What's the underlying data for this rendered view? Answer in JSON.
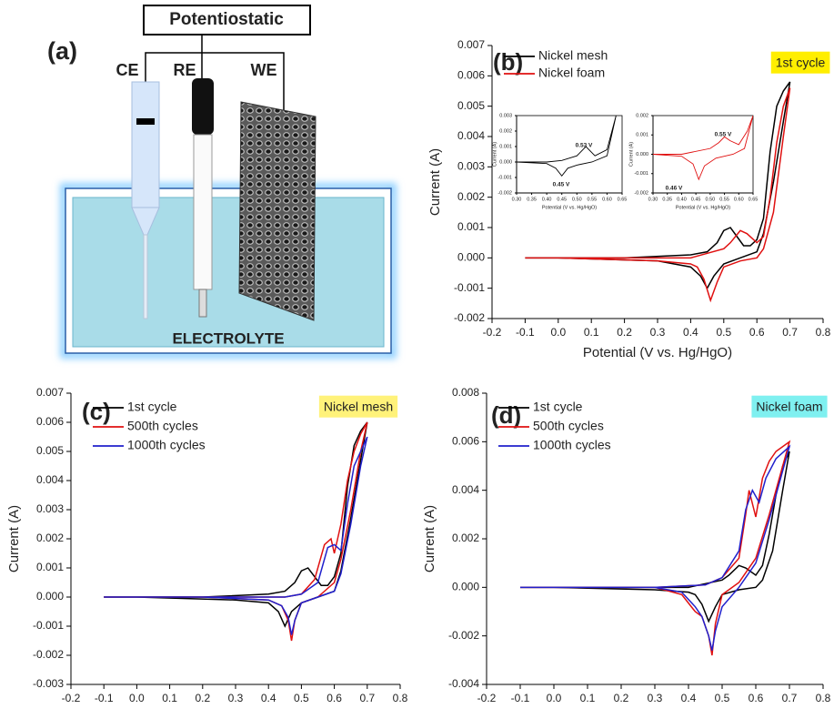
{
  "diagram": {
    "panel_label": "(a)",
    "title": "Potentiostatic",
    "electrodes": [
      "CE",
      "RE",
      "WE"
    ],
    "electrolyte": "ELECTROLYTE"
  },
  "chart_data": [
    {
      "type": "line",
      "panel_label": "(b)",
      "xlabel": "Potential (V vs. Hg/HgO)",
      "ylabel": "Current (A)",
      "badge": "1st cycle",
      "badge_color": "#ffee00",
      "xlim": [
        -0.2,
        0.8
      ],
      "ylim": [
        -0.002,
        0.007
      ],
      "xticks": [
        -0.2,
        -0.1,
        {
          "value": 0,
          "label": "0.0"
        },
        0.1,
        0.2,
        0.3,
        0.4,
        0.5,
        0.6,
        0.7,
        0.8
      ],
      "yticks": [
        -0.002,
        -0.001,
        {
          "value": 0,
          "label": "0.000"
        },
        0.001,
        0.002,
        0.003,
        0.004,
        0.005,
        0.006,
        0.007
      ],
      "series": [
        {
          "name": "Nickel mesh",
          "color": "#000000",
          "x": [
            -0.1,
            0.2,
            0.4,
            0.45,
            0.48,
            0.5,
            0.52,
            0.54,
            0.56,
            0.58,
            0.6,
            0.62,
            0.64,
            0.66,
            0.68,
            0.7,
            0.68,
            0.65,
            0.62,
            0.6,
            0.55,
            0.5,
            0.47,
            0.45,
            0.43,
            0.4,
            0.3,
            0,
            -0.1
          ],
          "values": [
            0,
            0,
            0.0001,
            0.0002,
            0.0005,
            0.0009,
            0.001,
            0.0007,
            0.0004,
            0.0004,
            0.0006,
            0.0013,
            0.0035,
            0.005,
            0.0055,
            0.0058,
            0.0045,
            0.0025,
            0.0008,
            0.0002,
            0,
            -0.0002,
            -0.0006,
            -0.001,
            -0.0006,
            -0.0003,
            -0.0001,
            0,
            0
          ]
        },
        {
          "name": "Nickel foam",
          "color": "#e01010",
          "x": [
            -0.1,
            0.2,
            0.4,
            0.5,
            0.52,
            0.55,
            0.57,
            0.6,
            0.62,
            0.64,
            0.66,
            0.68,
            0.7,
            0.68,
            0.65,
            0.62,
            0.6,
            0.55,
            0.5,
            0.48,
            0.46,
            0.44,
            0.42,
            0.4,
            0.3,
            0,
            -0.1
          ],
          "values": [
            0,
            0,
            0,
            0.0003,
            0.0005,
            0.0009,
            0.0008,
            0.0005,
            0.0007,
            0.002,
            0.0038,
            0.005,
            0.0056,
            0.004,
            0.0015,
            0.0003,
            0,
            -0.0001,
            -0.0003,
            -0.0008,
            -0.0014,
            -0.0007,
            -0.0003,
            -0.0002,
            -0.0001,
            0,
            0
          ]
        }
      ]
    },
    {
      "type": "line",
      "xlabel": "Potential (V vs. Hg/HgO)",
      "ylabel": "Current (A)",
      "annotations": [
        "0.53 V",
        "0.45 V"
      ],
      "xlim": [
        0.3,
        0.65
      ],
      "ylim": [
        -0.002,
        0.003
      ],
      "xticks": [
        {
          "value": 0.3,
          "label": "0.30"
        },
        0.35,
        {
          "value": 0.4,
          "label": "0.40"
        },
        0.45,
        {
          "value": 0.5,
          "label": "0.50"
        },
        0.55,
        {
          "value": 0.6,
          "label": "0.60"
        },
        0.65
      ],
      "yticks": [
        -0.002,
        -0.001,
        {
          "value": 0,
          "label": "0.000"
        },
        0.001,
        0.002,
        0.003
      ],
      "series": [
        {
          "color": "#000000",
          "x": [
            0.3,
            0.4,
            0.45,
            0.5,
            0.53,
            0.56,
            0.6,
            0.63,
            0.6,
            0.55,
            0.5,
            0.47,
            0.45,
            0.43,
            0.4,
            0.3
          ],
          "values": [
            0,
            0,
            0.0001,
            0.0004,
            0.001,
            0.0004,
            0.0008,
            0.003,
            0.0004,
            0,
            -0.0002,
            -0.0004,
            -0.0009,
            -0.0004,
            -0.0001,
            0
          ]
        }
      ]
    },
    {
      "type": "line",
      "xlabel": "Potential (V vs. Hg/HgO)",
      "ylabel": "Current (A)",
      "annotations": [
        "0.55 V",
        "0.46 V"
      ],
      "xlim": [
        0.3,
        0.65
      ],
      "ylim": [
        -0.002,
        0.002
      ],
      "xticks": [
        {
          "value": 0.3,
          "label": "0.30"
        },
        0.35,
        {
          "value": 0.4,
          "label": "0.40"
        },
        0.45,
        {
          "value": 0.5,
          "label": "0.50"
        },
        0.55,
        {
          "value": 0.6,
          "label": "0.60"
        },
        0.65
      ],
      "yticks": [
        -0.002,
        -0.001,
        {
          "value": 0,
          "label": "0.000"
        },
        0.001,
        0.002
      ],
      "series": [
        {
          "color": "#e01010",
          "x": [
            0.3,
            0.4,
            0.5,
            0.53,
            0.55,
            0.57,
            0.6,
            0.63,
            0.65,
            0.62,
            0.58,
            0.52,
            0.48,
            0.46,
            0.44,
            0.4,
            0.3
          ],
          "values": [
            0,
            0,
            0.0003,
            0.0006,
            0.0009,
            0.0007,
            0.0005,
            0.0012,
            0.002,
            0.0003,
            0,
            -0.0002,
            -0.0006,
            -0.0013,
            -0.0005,
            -0.0001,
            0
          ]
        }
      ]
    },
    {
      "type": "line",
      "panel_label": "(c)",
      "xlabel": "Potential (V vs. Hg/HgO)",
      "ylabel": "Current (A)",
      "badge": "Nickel mesh",
      "badge_color": "#fff27a",
      "xlim": [
        -0.2,
        0.8
      ],
      "ylim": [
        -0.003,
        0.007
      ],
      "xticks": [
        -0.2,
        -0.1,
        {
          "value": 0,
          "label": "0.0"
        },
        0.1,
        0.2,
        0.3,
        0.4,
        0.5,
        0.6,
        0.7,
        0.8
      ],
      "yticks": [
        -0.003,
        -0.002,
        -0.001,
        {
          "value": 0,
          "label": "0.000"
        },
        0.001,
        0.002,
        0.003,
        0.004,
        0.005,
        0.006,
        0.007
      ],
      "series": [
        {
          "name": "1st cycle",
          "color": "#000000",
          "x": [
            -0.1,
            0.2,
            0.4,
            0.45,
            0.48,
            0.5,
            0.52,
            0.54,
            0.56,
            0.58,
            0.6,
            0.62,
            0.64,
            0.66,
            0.68,
            0.7,
            0.68,
            0.65,
            0.62,
            0.6,
            0.55,
            0.5,
            0.47,
            0.45,
            0.43,
            0.4,
            0.3,
            0,
            -0.1
          ],
          "values": [
            0,
            0,
            0.0001,
            0.0002,
            0.0005,
            0.0009,
            0.001,
            0.0007,
            0.0004,
            0.0004,
            0.0007,
            0.0015,
            0.0038,
            0.0052,
            0.0057,
            0.006,
            0.0047,
            0.0027,
            0.0009,
            0.0002,
            0,
            -0.0002,
            -0.0005,
            -0.001,
            -0.0005,
            -0.0002,
            -0.0001,
            0,
            0
          ]
        },
        {
          "name": "500th cycles",
          "color": "#e01010",
          "x": [
            -0.1,
            0.3,
            0.45,
            0.5,
            0.54,
            0.57,
            0.59,
            0.6,
            0.62,
            0.64,
            0.66,
            0.68,
            0.7,
            0.68,
            0.65,
            0.62,
            0.6,
            0.55,
            0.5,
            0.48,
            0.47,
            0.46,
            0.44,
            0.4,
            0.2,
            -0.1
          ],
          "values": [
            0,
            0,
            0,
            0.0001,
            0.0006,
            0.0018,
            0.002,
            0.0015,
            0.0025,
            0.004,
            0.005,
            0.0056,
            0.006,
            0.005,
            0.003,
            0.0013,
            0.0005,
            0,
            -0.0002,
            -0.0008,
            -0.0015,
            -0.0008,
            -0.0003,
            -0.0001,
            0,
            0
          ]
        },
        {
          "name": "1000th cycles",
          "color": "#2020cc",
          "x": [
            -0.1,
            0.3,
            0.45,
            0.5,
            0.55,
            0.58,
            0.6,
            0.62,
            0.64,
            0.66,
            0.68,
            0.7,
            0.68,
            0.65,
            0.62,
            0.6,
            0.55,
            0.5,
            0.48,
            0.47,
            0.46,
            0.44,
            0.4,
            0.2,
            -0.1
          ],
          "values": [
            0,
            0,
            0,
            0.0001,
            0.0005,
            0.0017,
            0.0018,
            0.0016,
            0.0032,
            0.0045,
            0.005,
            0.0055,
            0.0045,
            0.0025,
            0.0008,
            0.0002,
            0,
            -0.0002,
            -0.0008,
            -0.0013,
            -0.0007,
            -0.0003,
            -0.0001,
            0,
            0
          ]
        }
      ]
    },
    {
      "type": "line",
      "panel_label": "(d)",
      "xlabel": "Potential (V. vs Hg/HgO)",
      "ylabel": "Current (A)",
      "badge": "Nickel foam",
      "badge_color": "#7ff0f0",
      "xlim": [
        -0.2,
        0.8
      ],
      "ylim": [
        -0.004,
        0.008
      ],
      "xticks": [
        -0.2,
        -0.1,
        {
          "value": 0,
          "label": "0.0"
        },
        0.1,
        0.2,
        0.3,
        0.4,
        0.5,
        0.6,
        0.7,
        0.8
      ],
      "yticks": [
        -0.004,
        -0.002,
        {
          "value": 0,
          "label": "0.000"
        },
        0.002,
        0.004,
        0.006,
        0.008
      ],
      "series": [
        {
          "name": "1st cycle",
          "color": "#000000",
          "x": [
            -0.1,
            0.2,
            0.4,
            0.5,
            0.52,
            0.55,
            0.57,
            0.6,
            0.62,
            0.64,
            0.66,
            0.68,
            0.7,
            0.68,
            0.65,
            0.62,
            0.6,
            0.55,
            0.5,
            0.48,
            0.46,
            0.44,
            0.42,
            0.4,
            0.3,
            0,
            -0.1
          ],
          "values": [
            0,
            0,
            0,
            0.0003,
            0.0005,
            0.0009,
            0.0008,
            0.0005,
            0.0009,
            0.0022,
            0.0038,
            0.005,
            0.0056,
            0.004,
            0.0015,
            0.0003,
            0,
            -0.0001,
            -0.0003,
            -0.0008,
            -0.0014,
            -0.0007,
            -0.0003,
            -0.0002,
            -0.0001,
            0,
            0
          ]
        },
        {
          "name": "500th cycles",
          "color": "#e01010",
          "x": [
            -0.1,
            0.3,
            0.45,
            0.5,
            0.55,
            0.57,
            0.58,
            0.6,
            0.62,
            0.64,
            0.66,
            0.7,
            0.68,
            0.64,
            0.6,
            0.55,
            0.5,
            0.48,
            0.47,
            0.46,
            0.44,
            0.42,
            0.38,
            0.3,
            -0.1
          ],
          "values": [
            0,
            0,
            0.0001,
            0.0004,
            0.0012,
            0.003,
            0.004,
            0.0029,
            0.0045,
            0.0052,
            0.0056,
            0.006,
            0.005,
            0.003,
            0.0012,
            0.0002,
            -0.0003,
            -0.0015,
            -0.0028,
            -0.002,
            -0.0012,
            -0.001,
            -0.0003,
            0,
            0
          ]
        },
        {
          "name": "1000th cycles",
          "color": "#2020cc",
          "x": [
            -0.1,
            0.3,
            0.45,
            0.5,
            0.55,
            0.57,
            0.59,
            0.61,
            0.63,
            0.66,
            0.7,
            0.68,
            0.64,
            0.6,
            0.55,
            0.5,
            0.48,
            0.47,
            0.46,
            0.44,
            0.42,
            0.38,
            0.3,
            -0.1
          ],
          "values": [
            0,
            0,
            0.0001,
            0.0004,
            0.0015,
            0.0032,
            0.004,
            0.0035,
            0.0045,
            0.0053,
            0.0058,
            0.0048,
            0.0028,
            0.001,
            0,
            -0.0008,
            -0.0018,
            -0.0026,
            -0.002,
            -0.0012,
            -0.0008,
            -0.0002,
            0,
            0
          ]
        }
      ]
    }
  ]
}
